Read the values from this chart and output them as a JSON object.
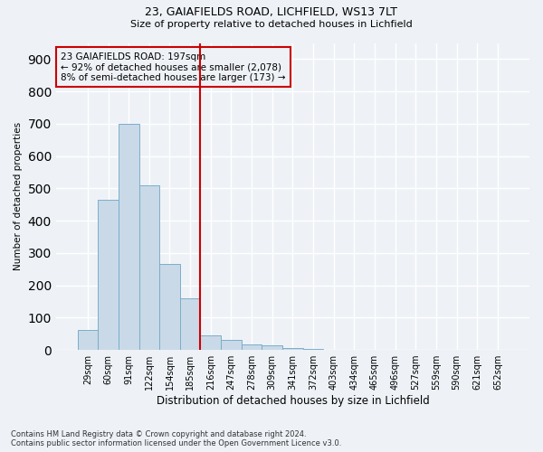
{
  "title1": "23, GAIAFIELDS ROAD, LICHFIELD, WS13 7LT",
  "title2": "Size of property relative to detached houses in Lichfield",
  "xlabel": "Distribution of detached houses by size in Lichfield",
  "ylabel": "Number of detached properties",
  "footnote": "Contains HM Land Registry data © Crown copyright and database right 2024.\nContains public sector information licensed under the Open Government Licence v3.0.",
  "bin_labels": [
    "29sqm",
    "60sqm",
    "91sqm",
    "122sqm",
    "154sqm",
    "185sqm",
    "216sqm",
    "247sqm",
    "278sqm",
    "309sqm",
    "341sqm",
    "372sqm",
    "403sqm",
    "434sqm",
    "465sqm",
    "496sqm",
    "527sqm",
    "559sqm",
    "590sqm",
    "621sqm",
    "652sqm"
  ],
  "bar_values": [
    63,
    465,
    700,
    510,
    265,
    160,
    45,
    30,
    16,
    13,
    5,
    4,
    0,
    0,
    0,
    0,
    0,
    0,
    0,
    0,
    0
  ],
  "bar_color": "#c9d9e8",
  "bar_edge_color": "#7aafc8",
  "vline_x_index": 5.5,
  "vline_color": "#cc0000",
  "annotation_text": "23 GAIAFIELDS ROAD: 197sqm\n← 92% of detached houses are smaller (2,078)\n8% of semi-detached houses are larger (173) →",
  "annotation_box_color": "#cc0000",
  "background_color": "#eef2f7",
  "grid_color": "#ffffff",
  "ylim": [
    0,
    950
  ],
  "yticks": [
    0,
    100,
    200,
    300,
    400,
    500,
    600,
    700,
    800,
    900
  ]
}
